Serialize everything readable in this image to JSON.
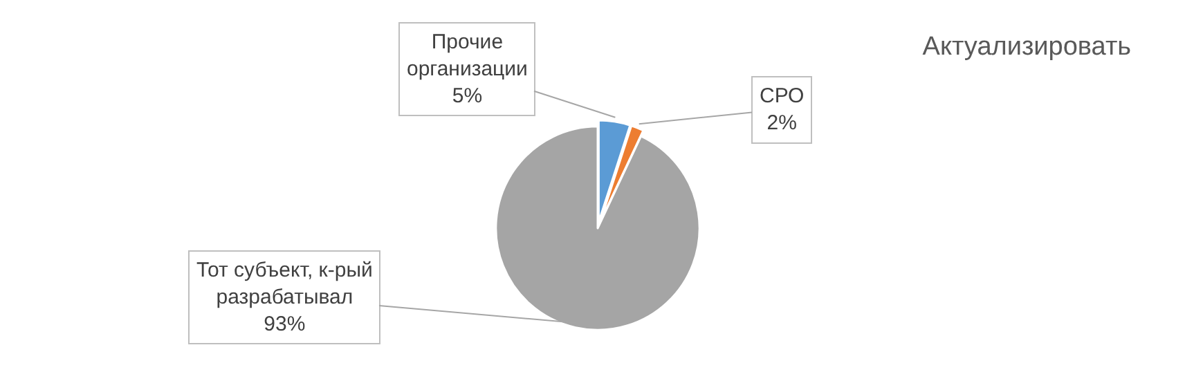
{
  "chart_data": {
    "type": "pie",
    "title": "Актуализировать",
    "categories": [
      "Прочие организации",
      "СРО",
      "Тот субъект, к-рый разрабатывал"
    ],
    "values": [
      5,
      2,
      93
    ],
    "value_labels": [
      "5%",
      "2%",
      "93%"
    ],
    "colors": [
      "#5b9bd5",
      "#ed7d31",
      "#a5a5a5"
    ],
    "legend": false
  }
}
